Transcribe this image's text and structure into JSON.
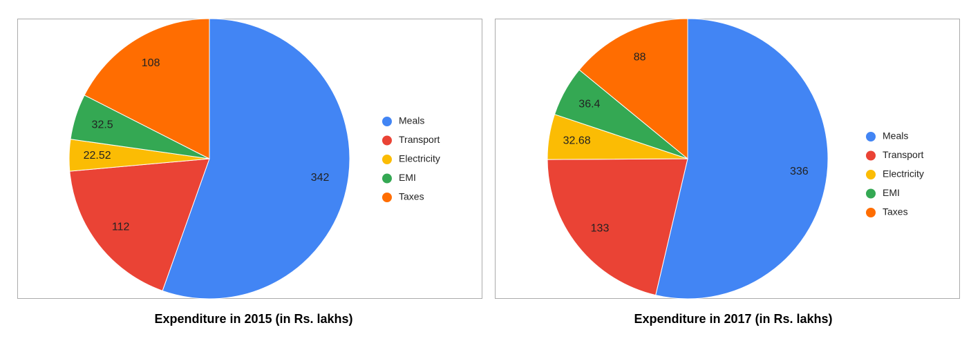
{
  "chart_data": [
    {
      "type": "pie",
      "title": "Expenditure in 2015 (in Rs. lakhs)",
      "categories": [
        "Meals",
        "Transport",
        "Electricity",
        "EMI",
        "Taxes"
      ],
      "values": [
        342,
        112,
        22.52,
        32.5,
        108
      ],
      "colors": [
        "#4285f4",
        "#ea4335",
        "#fbbc04",
        "#34a853",
        "#ff6d01"
      ],
      "legend": "right"
    },
    {
      "type": "pie",
      "title": "Expenditure in 2017 (in Rs. lakhs)",
      "categories": [
        "Meals",
        "Transport",
        "Electricity",
        "EMI",
        "Taxes"
      ],
      "values": [
        336,
        133,
        32.68,
        36.4,
        88
      ],
      "colors": [
        "#4285f4",
        "#ea4335",
        "#fbbc04",
        "#34a853",
        "#ff6d01"
      ],
      "legend": "right"
    }
  ]
}
